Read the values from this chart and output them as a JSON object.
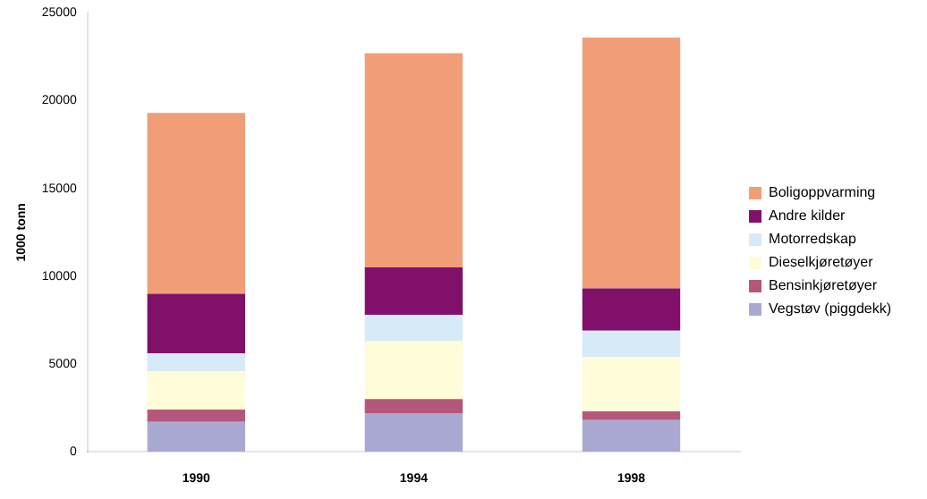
{
  "chart_data": {
    "type": "bar",
    "stacked": true,
    "ylabel": "1000 tonn",
    "categories": [
      "1990",
      "1994",
      "1998"
    ],
    "series": [
      {
        "name": "Vegstøv (piggdekk)",
        "color": "#a9a9d1",
        "values": [
          1700,
          2200,
          1800
        ]
      },
      {
        "name": "Bensinkjøretøyer",
        "color": "#b5577a",
        "values": [
          700,
          800,
          500
        ]
      },
      {
        "name": "Dieselkjøretøyer",
        "color": "#fffcd9",
        "values": [
          2200,
          3300,
          3100
        ]
      },
      {
        "name": "Motorredskap",
        "color": "#d6eaf8",
        "values": [
          1000,
          1500,
          1500
        ]
      },
      {
        "name": "Andre kilder",
        "color": "#80106a",
        "values": [
          3400,
          2700,
          2400
        ]
      },
      {
        "name": "Boligoppvarming",
        "color": "#f19e78",
        "values": [
          10300,
          12200,
          14300
        ]
      }
    ],
    "ylim": [
      0,
      25000
    ],
    "yticks": [
      0,
      5000,
      10000,
      15000,
      20000,
      25000
    ],
    "legend": "right"
  }
}
